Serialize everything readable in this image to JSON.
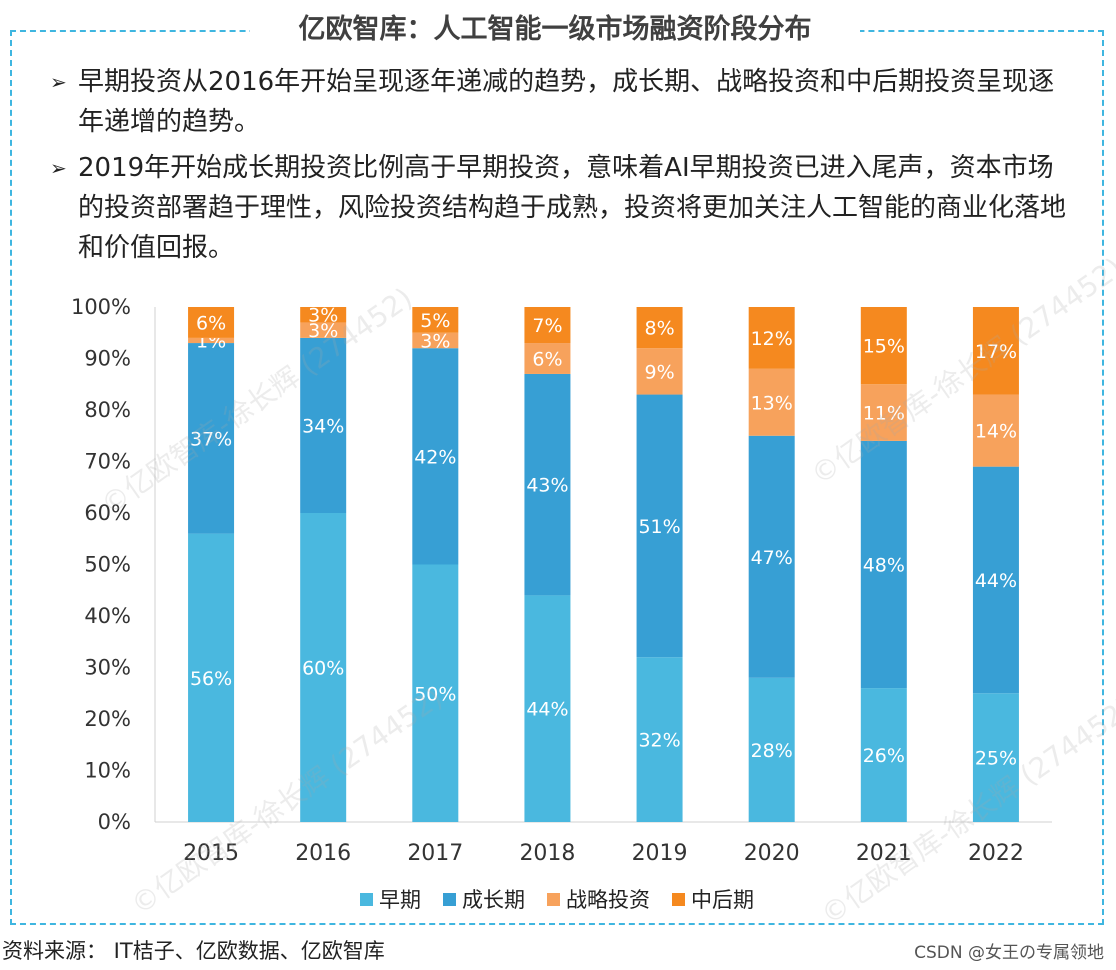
{
  "header": {
    "title": "亿欧智库：人工智能一级市场融资阶段分布"
  },
  "bullets": [
    {
      "arrow": "➢",
      "text": "早期投资从2016年开始呈现逐年递减的趋势，成长期、战略投资和中后期投资呈现逐年递增的趋势。"
    },
    {
      "arrow": "➢",
      "text": "2019年开始成长期投资比例高于早期投资，意味着AI早期投资已进入尾声，资本市场的投资部署趋于理性，风险投资结构趋于成熟，投资将更加关注人工智能的商业化落地和价值回报。"
    }
  ],
  "chart_data": {
    "type": "bar",
    "stacked": true,
    "categories": [
      "2015",
      "2016",
      "2017",
      "2018",
      "2019",
      "2020",
      "2021",
      "2022"
    ],
    "series": [
      {
        "name": "早期",
        "color": "#4ab8df",
        "values": [
          56,
          60,
          50,
          44,
          32,
          28,
          26,
          25
        ]
      },
      {
        "name": "成长期",
        "color": "#379fd4",
        "values": [
          37,
          34,
          42,
          43,
          51,
          47,
          48,
          44
        ]
      },
      {
        "name": "战略投资",
        "color": "#f7a25c",
        "values": [
          1,
          3,
          3,
          6,
          9,
          13,
          11,
          14
        ]
      },
      {
        "name": "中后期",
        "color": "#f5891f",
        "values": [
          6,
          3,
          5,
          7,
          8,
          12,
          15,
          17
        ]
      }
    ],
    "ylim": [
      0,
      100
    ],
    "yticks": [
      "0%",
      "10%",
      "20%",
      "30%",
      "40%",
      "50%",
      "60%",
      "70%",
      "80%",
      "90%",
      "100%"
    ],
    "value_suffix": "%",
    "legend_position": "bottom"
  },
  "footer": {
    "source": "资料来源： IT桔子、亿欧数据、亿欧智库",
    "credit": "CSDN @女王の专属领地"
  },
  "watermark": "©亿欧智库-徐长辉 (274452)"
}
